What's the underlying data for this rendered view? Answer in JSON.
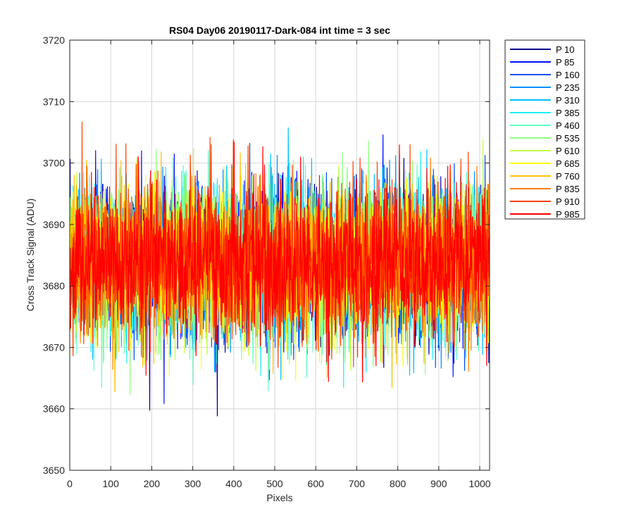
{
  "chart_data": {
    "type": "line",
    "title": "RS04 Day06 20190117-Dark-084 int time = 3 sec",
    "xlabel": "Pixels",
    "ylabel": "Cross Track Signal (ADU)",
    "xlim": [
      0,
      1024
    ],
    "ylim": [
      3650,
      3720
    ],
    "xticks": [
      0,
      100,
      200,
      300,
      400,
      500,
      600,
      700,
      800,
      900,
      1000
    ],
    "yticks": [
      3650,
      3660,
      3670,
      3680,
      3690,
      3700,
      3710,
      3720
    ],
    "grid": true,
    "legend_position": "outside-top-right",
    "noise_mean": 3684,
    "noise_std": 6,
    "series": [
      {
        "name": "P 10",
        "color": "#00008f"
      },
      {
        "name": "P 85",
        "color": "#0010ff"
      },
      {
        "name": "P 160",
        "color": "#0050ff"
      },
      {
        "name": "P 235",
        "color": "#0090ff"
      },
      {
        "name": "P 310",
        "color": "#00c0ff"
      },
      {
        "name": "P 385",
        "color": "#20f0ef"
      },
      {
        "name": "P 460",
        "color": "#60ffc0"
      },
      {
        "name": "P 535",
        "color": "#90ff80"
      },
      {
        "name": "P 610",
        "color": "#c0ff40"
      },
      {
        "name": "P 685",
        "color": "#ffff00"
      },
      {
        "name": "P 760",
        "color": "#ffc000"
      },
      {
        "name": "P 835",
        "color": "#ff8000"
      },
      {
        "name": "P 910",
        "color": "#ff4000"
      },
      {
        "name": "P 985",
        "color": "#ff0000"
      }
    ]
  }
}
